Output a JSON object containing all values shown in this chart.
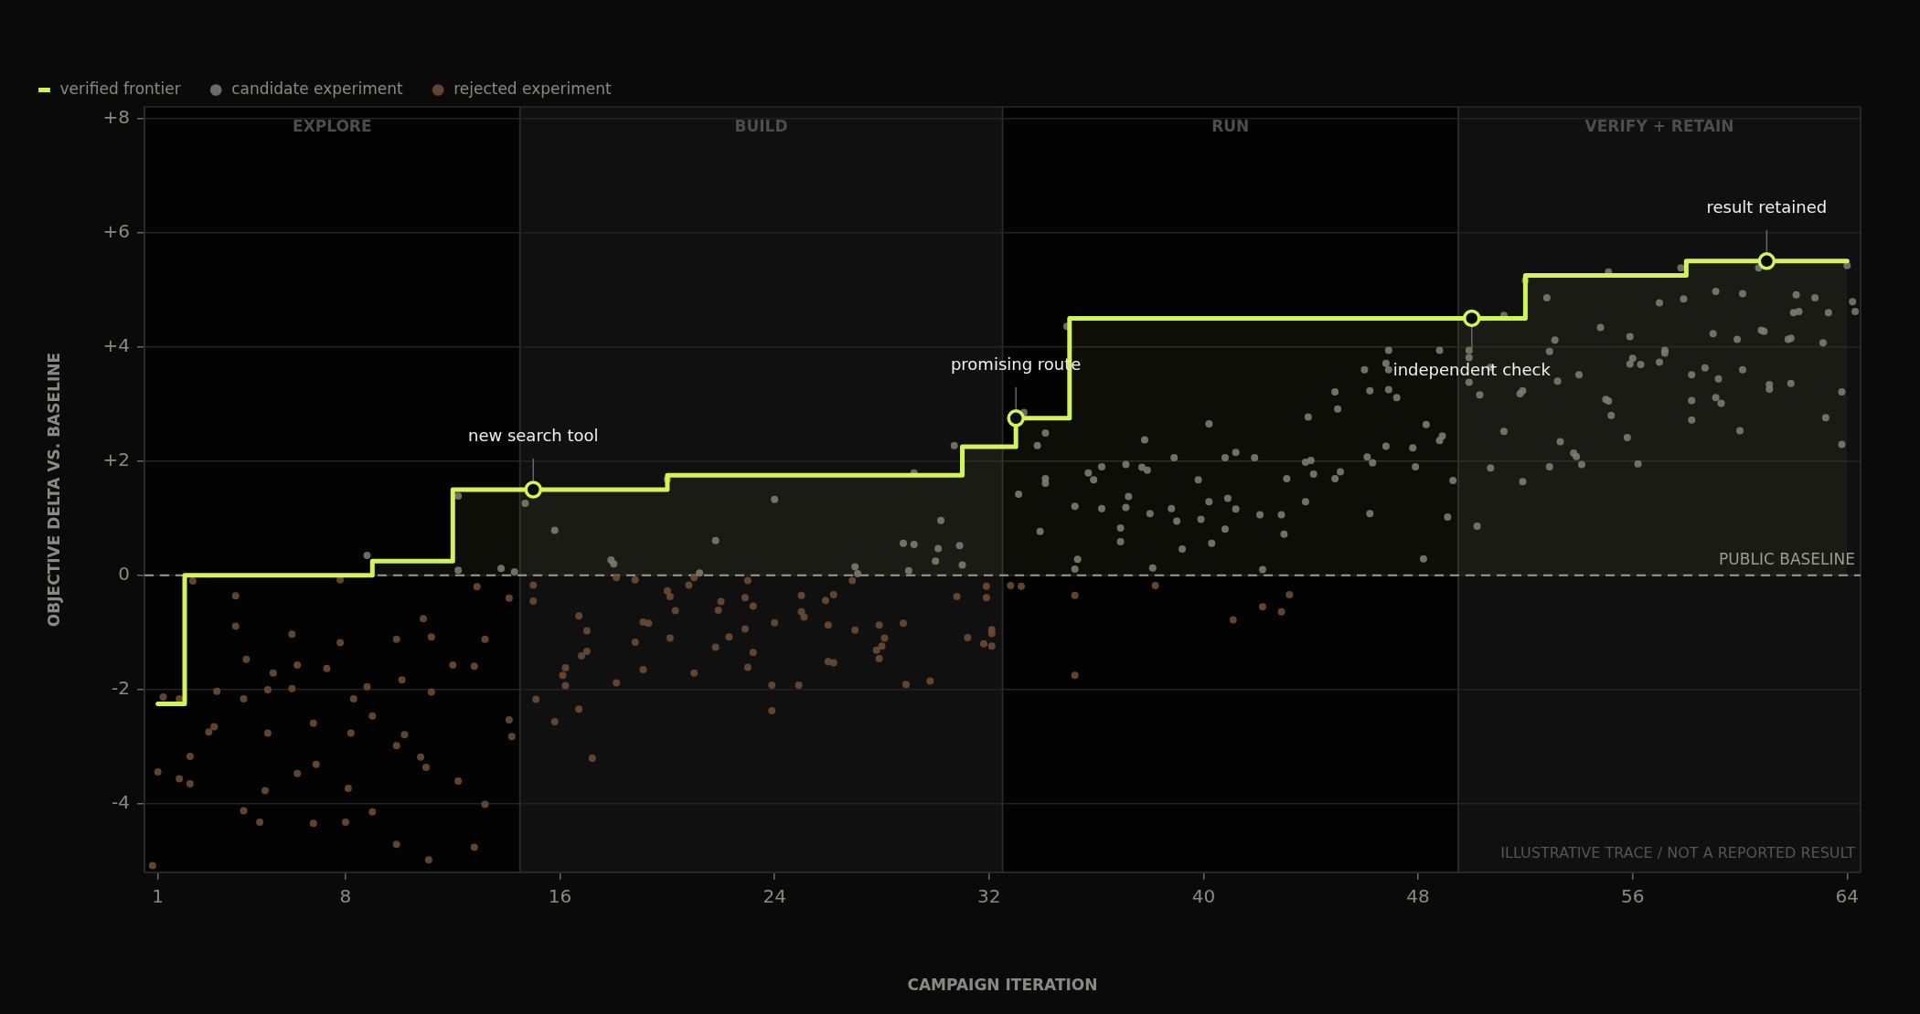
{
  "chart_data": {
    "type": "scatter",
    "xlabel": "CAMPAIGN ITERATION",
    "ylabel": "OBJECTIVE DELTA VS. BASELINE",
    "xlim": [
      0.5,
      64.5
    ],
    "xticks": [
      1,
      8,
      16,
      24,
      32,
      40,
      48,
      56,
      64
    ],
    "ylim": [
      -5.2,
      8.2
    ],
    "yticks": [
      -4,
      -2,
      0,
      {
        "value": 2,
        "label": "+2"
      },
      {
        "value": 4,
        "label": "+4"
      },
      {
        "value": 6,
        "label": "+6"
      },
      {
        "value": 8,
        "label": "+8"
      }
    ],
    "grid": "y",
    "legend": "top left",
    "series": [
      {
        "name": "verified frontier",
        "type": "step",
        "color": "#d4f25a",
        "marker": "none",
        "x": [
          1,
          2,
          9,
          12,
          20,
          31,
          33,
          35,
          52,
          58,
          64
        ],
        "values": [
          -2.25,
          0,
          0.25,
          1.5,
          1.75,
          2.25,
          2.75,
          4.5,
          5.25,
          5.5,
          5.5
        ]
      },
      {
        "name": "candidate experiment",
        "type": "scatter",
        "color": "#77776f",
        "marker": "circle",
        "x": [
          8.8,
          12.2,
          14.7,
          15.8,
          12.2,
          13.8,
          14.3,
          17.9,
          18.0,
          21.8,
          21.2,
          20.0,
          24.0,
          27.0,
          27.1,
          28.8,
          29.2,
          29.0,
          30.2,
          30.1,
          30.0,
          30.9,
          31.0,
          33.1,
          33.9,
          35.2,
          35.3,
          35.2,
          36.2,
          36.9,
          36.9,
          37.1,
          37.2,
          38.0,
          38.1,
          38.8,
          39.0,
          39.2,
          39.9,
          40.2,
          40.3,
          40.9,
          40.8,
          41.2,
          42.1,
          42.2,
          42.9,
          43.0,
          43.8,
          29.2,
          30.7,
          33.3,
          34.1,
          33.8,
          34.9,
          37.8,
          40.2,
          43.9,
          35.7,
          35.9,
          36.2,
          37.1,
          37.7,
          37.9,
          38.9,
          39.8,
          40.8,
          41.2,
          41.9,
          43.1,
          43.8,
          44.0,
          44.1,
          34.1,
          34.1,
          44.9,
          45.0,
          45.1,
          44.9,
          46.0,
          46.2,
          46.1,
          46.3,
          46.8,
          46.9,
          46.9,
          46.9,
          47.2,
          46.8,
          47.9,
          47.8,
          48.3,
          48.8,
          48.8,
          48.9,
          49.3,
          49.9,
          49.9,
          49.9,
          50.3,
          50.7,
          51.2,
          51.2,
          50.7,
          51.8,
          51.9,
          51.9,
          52.0,
          52.8,
          53.1,
          52.9,
          53.2,
          53.3,
          52.9,
          53.8,
          53.9,
          54.0,
          54.1,
          54.8,
          55.0,
          55.1,
          55.2,
          55.1,
          55.8,
          55.9,
          56.0,
          56.3,
          56.2,
          55.9,
          57.0,
          57.0,
          57.2,
          57.2,
          57.8,
          57.9,
          58.2,
          58.2,
          58.2,
          58.7,
          59.0,
          59.1,
          59.1,
          59.2,
          59.3,
          59.9,
          60.0,
          60.1,
          60.1,
          60.7,
          60.8,
          60.9,
          61.1,
          61.1,
          61.8,
          61.9,
          62.0,
          61.9,
          62.1,
          62.2,
          62.8,
          63.1,
          63.2,
          63.3,
          63.8,
          63.8,
          64.0,
          64.2,
          64.3,
          46.2,
          49.1,
          50.2,
          48.2
        ],
        "values": [
          0.35,
          1.39,
          1.26,
          0.79,
          0.09,
          0.12,
          0.06,
          0.27,
          0.2,
          0.61,
          0.04,
          1.68,
          1.33,
          0.15,
          0.03,
          0.56,
          0.54,
          0.08,
          0.96,
          0.47,
          0.25,
          0.52,
          0.18,
          1.42,
          0.77,
          1.21,
          0.28,
          0.11,
          1.17,
          0.83,
          0.59,
          1.19,
          1.38,
          1.08,
          0.13,
          1.17,
          0.95,
          0.46,
          0.98,
          1.29,
          0.56,
          1.35,
          0.81,
          1.16,
          1.06,
          0.1,
          1.06,
          0.72,
          1.29,
          1.79,
          2.27,
          2.85,
          2.49,
          2.27,
          4.36,
          2.37,
          2.65,
          2.77,
          1.79,
          1.67,
          1.9,
          1.94,
          1.89,
          1.84,
          2.06,
          1.67,
          2.06,
          2.15,
          2.06,
          1.69,
          1.98,
          2.01,
          1.77,
          1.69,
          1.61,
          3.21,
          2.91,
          1.81,
          1.69,
          3.6,
          3.23,
          2.07,
          1.97,
          3.71,
          3.94,
          3.6,
          3.25,
          3.11,
          2.26,
          1.9,
          2.23,
          2.64,
          3.94,
          2.36,
          2.44,
          1.66,
          3.94,
          3.81,
          3.38,
          3.16,
          3.64,
          4.55,
          2.52,
          1.88,
          3.18,
          3.23,
          1.64,
          5.16,
          4.86,
          4.12,
          3.92,
          3.4,
          2.34,
          1.9,
          2.14,
          2.08,
          3.51,
          1.94,
          4.34,
          3.08,
          3.05,
          2.8,
          5.31,
          2.41,
          4.18,
          3.8,
          3.69,
          1.95,
          3.7,
          3.73,
          4.77,
          3.89,
          3.94,
          5.38,
          4.84,
          3.06,
          3.51,
          2.72,
          3.63,
          4.23,
          3.11,
          4.97,
          3.44,
          3.01,
          4.13,
          2.53,
          3.6,
          4.93,
          5.38,
          4.29,
          4.27,
          3.34,
          3.26,
          4.13,
          3.36,
          4.6,
          4.15,
          4.91,
          4.62,
          4.86,
          4.07,
          2.76,
          4.6,
          3.21,
          2.29,
          5.42,
          4.79,
          4.62,
          1.08,
          1.02,
          0.86,
          0.29
        ]
      },
      {
        "name": "rejected experiment",
        "type": "scatter",
        "color": "#6b4a33",
        "marker": "circle",
        "x": [
          0.8,
          1.0,
          1.2,
          1.8,
          1.8,
          2.2,
          2.2,
          2.3,
          2.9,
          3.1,
          3.2,
          3.9,
          3.9,
          4.2,
          4.2,
          4.3,
          4.8,
          5.0,
          5.1,
          5.1,
          5.3,
          6.0,
          6.0,
          6.2,
          6.2,
          6.8,
          6.8,
          6.9,
          7.3,
          7.8,
          7.8,
          8.0,
          8.1,
          8.2,
          8.3,
          8.8,
          9.0,
          9.0,
          9.9,
          9.9,
          9.9,
          10.1,
          10.2,
          10.8,
          10.9,
          11.0,
          11.1,
          11.2,
          11.2,
          12.0,
          12.2,
          12.8,
          12.8,
          12.9,
          13.2,
          13.2,
          14.1,
          14.1,
          14.2,
          15.0,
          15.0,
          15.1,
          15.8,
          16.1,
          16.2,
          16.2,
          16.7,
          16.7,
          16.8,
          17.0,
          17.0,
          17.2,
          18.1,
          18.1,
          18.8,
          18.8,
          19.1,
          19.1,
          19.3,
          20.0,
          20.1,
          20.1,
          20.3,
          20.8,
          21.0,
          21.0,
          21.8,
          21.9,
          22.0,
          22.3,
          22.9,
          22.9,
          23.0,
          23.0,
          23.2,
          23.2,
          23.9,
          23.9,
          24.0,
          24.9,
          25.0,
          25.0,
          25.1,
          25.9,
          26.0,
          26.0,
          26.2,
          26.2,
          26.9,
          27.0,
          27.8,
          27.9,
          27.9,
          28.0,
          28.1,
          28.8,
          28.9,
          29.8,
          30.8,
          31.2,
          31.8,
          31.9,
          31.9,
          32.1,
          32.1,
          32.1,
          32.8,
          33.2,
          35.2,
          35.2,
          38.2,
          41.1,
          42.2,
          42.9,
          43.2
        ],
        "values": [
          -5.08,
          -3.44,
          -2.13,
          -2.16,
          -3.56,
          -3.65,
          -3.17,
          -0.1,
          -2.74,
          -2.65,
          -2.03,
          -0.36,
          -0.89,
          -2.16,
          -4.12,
          -1.47,
          -4.32,
          -3.77,
          -2.76,
          -2.0,
          -1.71,
          -1.98,
          -1.03,
          -3.47,
          -1.57,
          -2.59,
          -4.34,
          -3.31,
          -1.63,
          -0.08,
          -1.18,
          -4.32,
          -3.73,
          -2.76,
          -2.16,
          -1.95,
          -2.46,
          -4.14,
          -1.12,
          -2.98,
          -4.71,
          -1.83,
          -2.79,
          -3.18,
          -0.76,
          -3.36,
          -4.98,
          -1.08,
          -2.04,
          -1.57,
          -3.6,
          -4.76,
          -1.59,
          -0.2,
          -1.12,
          -4.01,
          -0.4,
          -2.53,
          -2.82,
          -0.45,
          -0.17,
          -2.17,
          -2.56,
          -1.75,
          -1.93,
          -1.62,
          -0.71,
          -2.34,
          -1.41,
          -0.97,
          -1.33,
          -3.2,
          -1.88,
          -0.04,
          -0.08,
          -1.17,
          -0.82,
          -1.65,
          -0.84,
          -0.27,
          -0.37,
          -1.1,
          -0.62,
          -0.17,
          -1.71,
          -0.04,
          -1.26,
          -0.61,
          -0.46,
          -1.08,
          -0.39,
          -0.94,
          -1.61,
          -0.09,
          -0.54,
          -1.35,
          -2.37,
          -1.92,
          -0.83,
          -1.92,
          -0.35,
          -0.64,
          -0.73,
          -0.44,
          -1.51,
          -0.87,
          -1.53,
          -0.34,
          -0.09,
          -0.96,
          -1.31,
          -1.46,
          -0.87,
          -1.24,
          -1.1,
          -0.84,
          -1.91,
          -1.85,
          -0.37,
          -1.09,
          -1.2,
          -0.19,
          -0.39,
          -1.02,
          -0.95,
          -1.24,
          -0.18,
          -0.19,
          -1.75,
          -0.35,
          -0.18,
          -0.78,
          -0.55,
          -0.64,
          -0.34
        ]
      }
    ],
    "ref_lines": [
      {
        "axis": "y",
        "value": 0,
        "label": "PUBLIC BASELINE",
        "color": "#9a9a90",
        "line_style": "dashed"
      }
    ],
    "bands": [
      {
        "axis": "x",
        "from": 0.5,
        "to": 14.5,
        "label": "EXPLORE",
        "color": "#030303"
      },
      {
        "axis": "x",
        "from": 14.5,
        "to": 32.5,
        "label": "BUILD",
        "color": "#101010"
      },
      {
        "axis": "x",
        "from": 32.5,
        "to": 49.5,
        "label": "RUN",
        "color": "#030303"
      },
      {
        "axis": "x",
        "from": 49.5,
        "to": 64.5,
        "label": "VERIFY + RETAIN",
        "color": "#101010"
      }
    ],
    "annotations": [
      {
        "text": "new search tool",
        "x": 15,
        "y": 1.5
      },
      {
        "text": "promising route",
        "x": 33,
        "y": 2.75
      },
      {
        "text": "independent check",
        "x": 50,
        "y": 4.5
      },
      {
        "text": "result retained",
        "x": 61,
        "y": 5.5
      },
      "ILLUSTRATIVE TRACE / NOT A REPORTED RESULT"
    ]
  }
}
